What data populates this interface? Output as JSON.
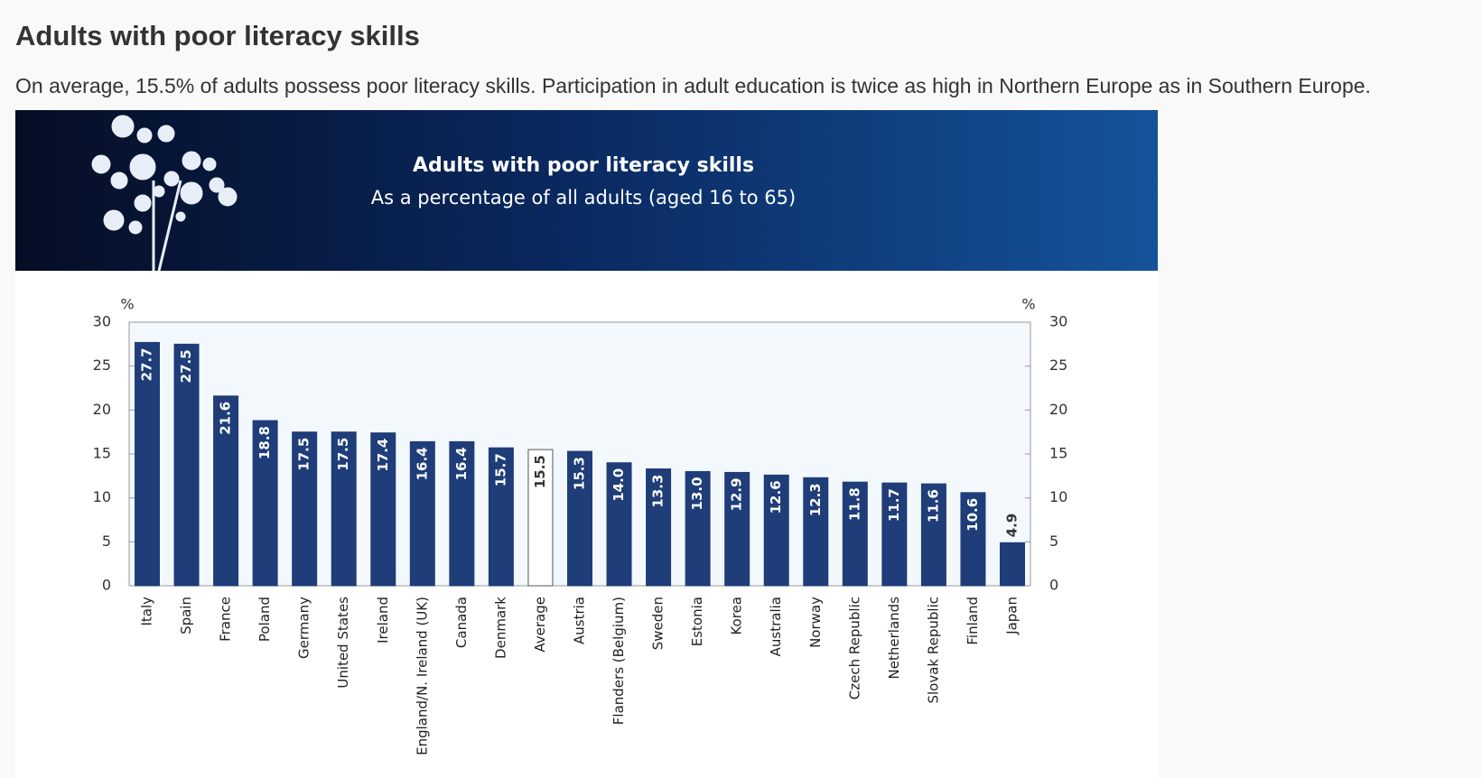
{
  "header": {
    "title": "Adults with poor literacy skills",
    "description": "On average, 15.5% of adults possess poor literacy skills. Participation in adult education is twice as high in Northern Europe as in Southern Europe."
  },
  "chart_data": {
    "type": "bar",
    "title": "Adults with poor literacy skills",
    "subtitle": "As a percentage of all adults (aged 16 to 65)",
    "y_unit": "%",
    "y2_unit": "%",
    "categories": [
      "Italy",
      "Spain",
      "France",
      "Poland",
      "Germany",
      "United States",
      "Ireland",
      "England/N. Ireland (UK)",
      "Canada",
      "Denmark",
      "Average",
      "Austria",
      "Flanders (Belgium)",
      "Sweden",
      "Estonia",
      "Korea",
      "Australia",
      "Norway",
      "Czech Republic",
      "Netherlands",
      "Slovak Republic",
      "Finland",
      "Japan"
    ],
    "values": [
      27.7,
      27.5,
      21.6,
      18.8,
      17.5,
      17.5,
      17.4,
      16.4,
      16.4,
      15.7,
      15.5,
      15.3,
      14.0,
      13.3,
      13.0,
      12.9,
      12.6,
      12.3,
      11.8,
      11.7,
      11.6,
      10.6,
      4.9
    ],
    "value_labels": [
      "27.7",
      "27.5",
      "21.6",
      "18.8",
      "17.5",
      "17.5",
      "17.4",
      "16.4",
      "16.4",
      "15.7",
      "15.5",
      "15.3",
      "14.0",
      "13.3",
      "13.0",
      "12.9",
      "12.6",
      "12.3",
      "11.8",
      "11.7",
      "11.6",
      "10.6",
      "4.9"
    ],
    "colors": [
      "#1f3d78",
      "#1f3d78",
      "#1f3d78",
      "#1f3d78",
      "#1f3d78",
      "#1f3d78",
      "#1f3d78",
      "#1f3d78",
      "#1f3d78",
      "#1f3d78",
      "#ffffff",
      "#1f3d78",
      "#1f3d78",
      "#1f3d78",
      "#1f3d78",
      "#1f3d78",
      "#1f3d78",
      "#1f3d78",
      "#1f3d78",
      "#1f3d78",
      "#1f3d78",
      "#1f3d78",
      "#1f3d78"
    ],
    "ylim": [
      0,
      30
    ],
    "yticks": [
      0,
      5,
      10,
      15,
      20,
      25,
      30
    ],
    "y2lim": [
      0,
      30
    ],
    "y2ticks": [
      0,
      5,
      10,
      15,
      20,
      25,
      30
    ],
    "grid": false
  }
}
